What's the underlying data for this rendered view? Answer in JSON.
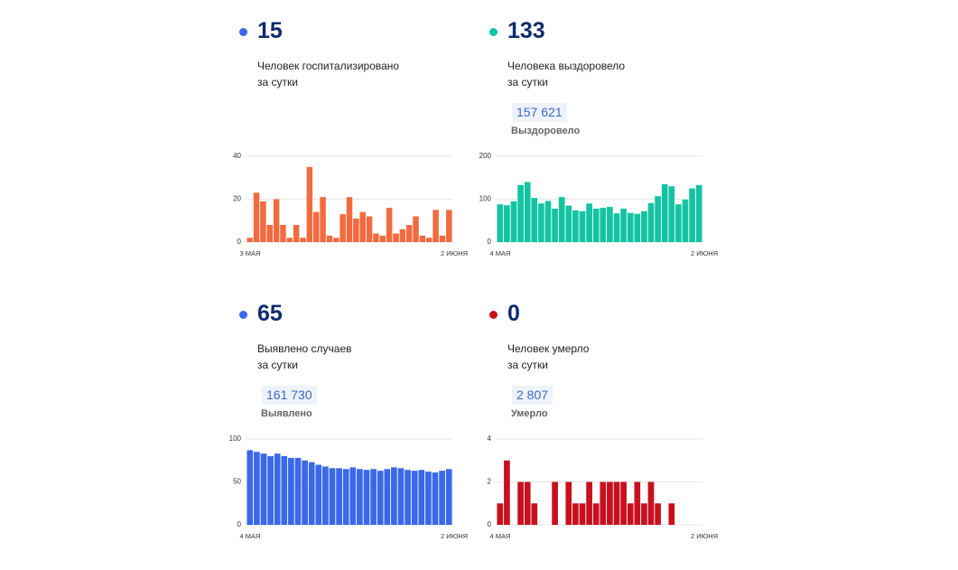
{
  "panels": [
    {
      "value": "15",
      "desc_line1": "Человек госпитализировано",
      "desc_line2": "за сутки",
      "total": "",
      "total_label": "",
      "color": "#f26a3e",
      "dot_color": "#3b68e8"
    },
    {
      "value": "133",
      "desc_line1": "Человека выздоровело",
      "desc_line2": "за сутки",
      "total": "157 621",
      "total_label": "Выздоровело",
      "color": "#13c4a3",
      "dot_color": "#13c4a3"
    },
    {
      "value": "65",
      "desc_line1": "Выявлено случаев",
      "desc_line2": "за сутки",
      "total": "161 730",
      "total_label": "Выявлено",
      "color": "#3b68e8",
      "dot_color": "#3b68e8"
    },
    {
      "value": "0",
      "desc_line1": "Человек умерло",
      "desc_line2": "за сутки",
      "total": "2 807",
      "total_label": "Умерло",
      "color": "#c8101e",
      "dot_color": "#c8101e"
    }
  ],
  "chart_data": [
    {
      "type": "bar",
      "x_start_label": "3 МАЯ",
      "x_end_label": "2 ИЮНЯ",
      "yticks": [
        0,
        20,
        40
      ],
      "ylim": [
        0,
        40
      ],
      "values": [
        2,
        23,
        19,
        8,
        20,
        8,
        2,
        8,
        2,
        35,
        14,
        21,
        3,
        2,
        13,
        21,
        11,
        14,
        12,
        4,
        3,
        16,
        4,
        6,
        8,
        12,
        3,
        2,
        15,
        3,
        15
      ]
    },
    {
      "type": "bar",
      "x_start_label": "4 МАЯ",
      "x_end_label": "2 ИЮНЯ",
      "yticks": [
        0,
        100,
        200
      ],
      "ylim": [
        0,
        200
      ],
      "values": [
        88,
        86,
        95,
        133,
        140,
        103,
        90,
        96,
        78,
        105,
        85,
        74,
        72,
        90,
        78,
        80,
        82,
        67,
        78,
        68,
        66,
        72,
        91,
        107,
        135,
        130,
        88,
        99,
        125,
        133
      ]
    },
    {
      "type": "bar",
      "x_start_label": "4 МАЯ",
      "x_end_label": "2 ИЮНЯ",
      "yticks": [
        0,
        50,
        100
      ],
      "ylim": [
        0,
        100
      ],
      "values": [
        87,
        85,
        83,
        80,
        83,
        80,
        78,
        78,
        75,
        73,
        70,
        68,
        66,
        66,
        65,
        67,
        65,
        64,
        65,
        63,
        65,
        67,
        66,
        64,
        63,
        64,
        62,
        61,
        63,
        65
      ]
    },
    {
      "type": "bar",
      "x_start_label": "4 МАЯ",
      "x_end_label": "2 ИЮНЯ",
      "yticks": [
        0,
        2,
        4
      ],
      "ylim": [
        0,
        4
      ],
      "values": [
        1,
        3,
        0,
        2,
        2,
        1,
        0,
        0,
        2,
        0,
        2,
        1,
        1,
        2,
        1,
        2,
        2,
        2,
        2,
        1,
        2,
        1,
        2,
        1,
        0,
        1,
        0,
        0,
        0,
        0
      ]
    }
  ]
}
